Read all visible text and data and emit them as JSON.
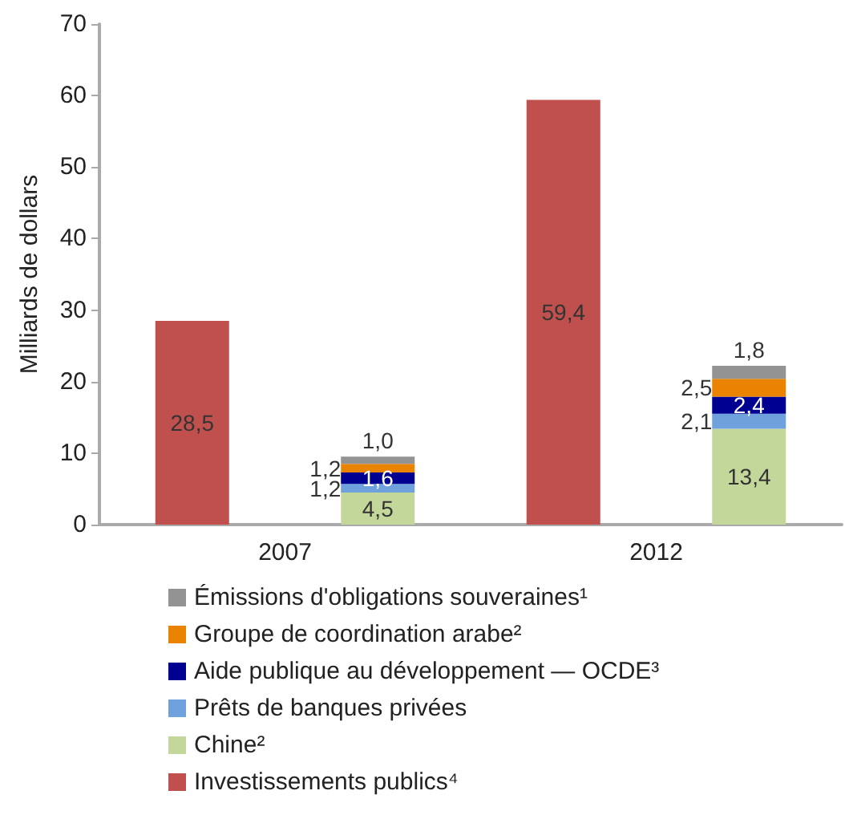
{
  "chart_data": {
    "type": "bar",
    "ylabel": "Milliards de dollars",
    "categories": [
      "2007",
      "2012"
    ],
    "ylim": [
      0,
      70
    ],
    "yticks": [
      0,
      10,
      20,
      30,
      40,
      50,
      60,
      70
    ],
    "grid": false,
    "legend": "bottom",
    "series": [
      {
        "name": "Investissements publics⁴",
        "color": "#c0504d",
        "values": [
          28.5,
          59.4
        ],
        "value_labels": [
          "28,5",
          "59,4"
        ]
      },
      {
        "name": "Chine²",
        "color": "#c4d79b",
        "values": [
          4.5,
          13.4
        ],
        "base": [
          0,
          0
        ],
        "value_labels": [
          "4,5",
          "13,4"
        ]
      },
      {
        "name": "Prêts de banques privées",
        "color": "#6fa1dc",
        "values": [
          1.2,
          2.1
        ],
        "base": [
          4.5,
          13.4
        ],
        "value_labels": [
          "1,2",
          "2,1"
        ]
      },
      {
        "name": "Aide publique au développement — OCDE³",
        "color": "#000090",
        "values": [
          1.6,
          2.4
        ],
        "base": [
          5.7,
          15.5
        ],
        "value_labels": [
          "1,6",
          "2,4"
        ]
      },
      {
        "name": "Groupe de coordination arabe²",
        "color": "#e98300",
        "values": [
          1.2,
          2.5
        ],
        "base": [
          7.3,
          17.9
        ],
        "value_labels": [
          "1,2",
          "2,5"
        ]
      },
      {
        "name": "Émissions d'obligations souveraines¹",
        "color": "#939393",
        "values": [
          1.0,
          1.8
        ],
        "base": [
          8.5,
          20.4
        ],
        "value_labels": [
          "1,0",
          "1,8"
        ]
      }
    ]
  }
}
